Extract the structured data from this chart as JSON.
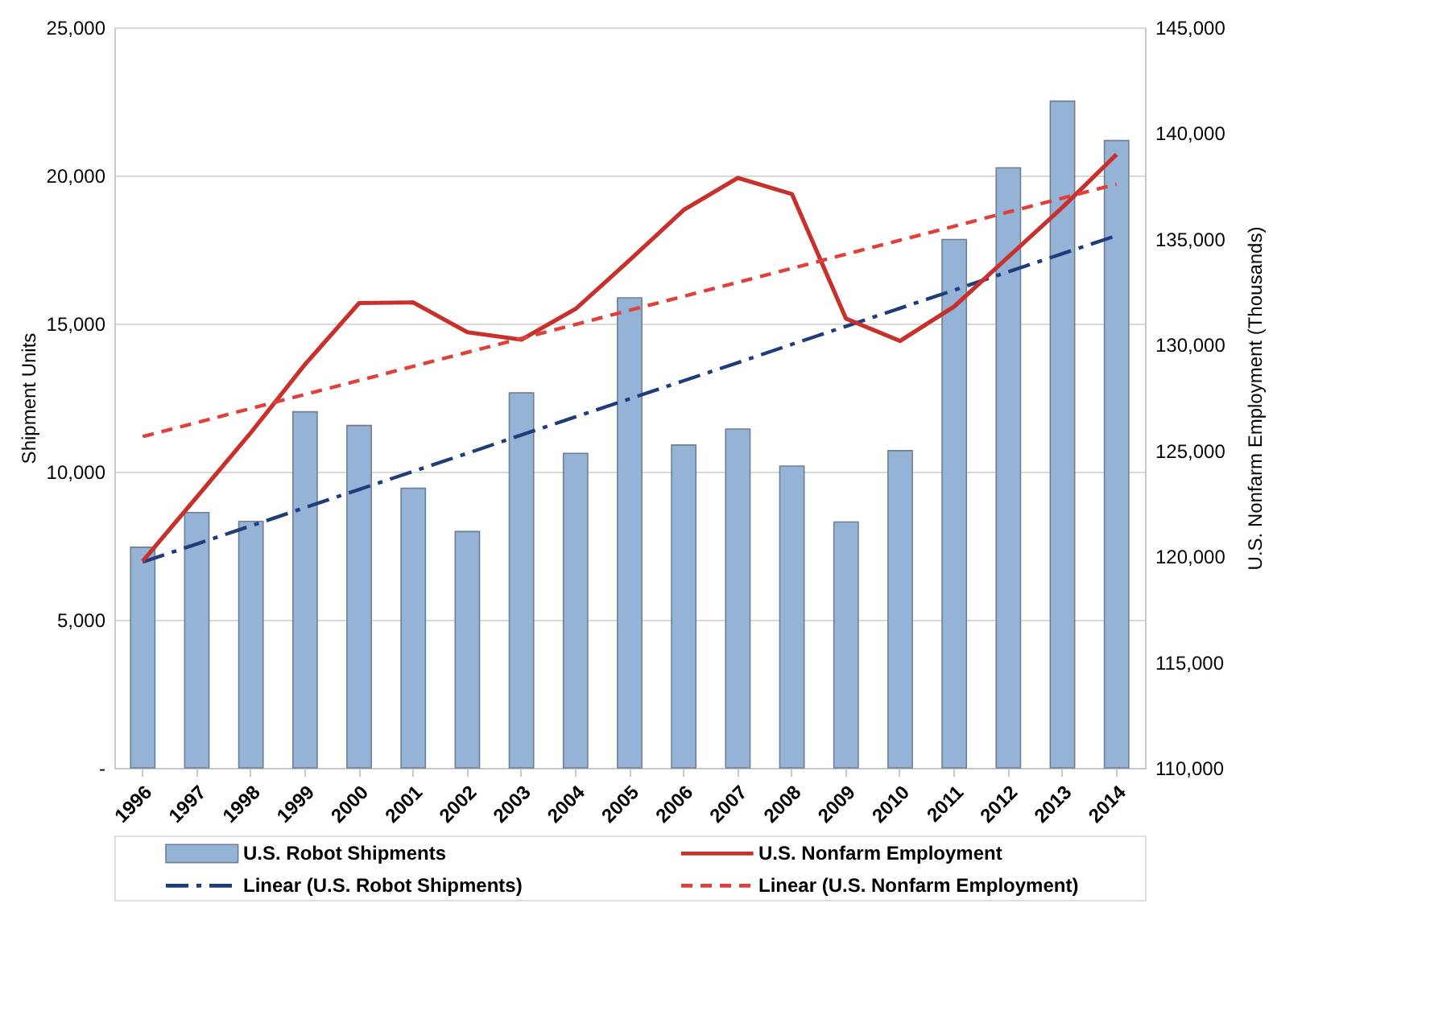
{
  "chart_data": {
    "type": "bar",
    "ylabel": "Shipment Units",
    "y2label": "U.S. Nonfarm Employment (Thousands)",
    "categories": [
      "1996",
      "1997",
      "1998",
      "1999",
      "2000",
      "2001",
      "2002",
      "2003",
      "2004",
      "2005",
      "2006",
      "2007",
      "2008",
      "2009",
      "2010",
      "2011",
      "2012",
      "2013",
      "2014"
    ],
    "series": [
      {
        "name": "U.S. Robot Shipments",
        "color": "#95b3d7",
        "values": [
          7450,
          8620,
          8320,
          12020,
          11560,
          9440,
          7980,
          12660,
          10620,
          15870,
          10900,
          11440,
          10190,
          8300,
          10710,
          17840,
          20260,
          22510,
          21180
        ]
      },
      {
        "name": "U.S. Nonfarm Employment",
        "type": "line",
        "axis": "y2",
        "color": "#c8312b",
        "values": [
          119770,
          122800,
          125850,
          129070,
          131970,
          132000,
          130590,
          130240,
          131690,
          134000,
          136370,
          137890,
          137120,
          131230,
          130180,
          131810,
          134150,
          136490,
          138990
        ]
      },
      {
        "name": "Linear (U.S. Robot Shipments)",
        "type": "line",
        "color": "#1f3d7a",
        "line_style": "dashdot",
        "values": [
          6950,
          7560,
          8170,
          8790,
          9400,
          10010,
          10620,
          11240,
          11850,
          12460,
          13070,
          13680,
          14300,
          14910,
          15520,
          16130,
          16750,
          17360,
          17970
        ]
      },
      {
        "name": "Linear (U.S. Nonfarm Employment)",
        "type": "line",
        "axis": "y2",
        "color": "#e0403a",
        "line_style": "dashed",
        "values": [
          125660,
          126320,
          126990,
          127650,
          128310,
          128980,
          129640,
          130300,
          130960,
          131630,
          132290,
          132950,
          133610,
          134280,
          134940,
          135600,
          136270,
          136930,
          137590
        ]
      }
    ],
    "ylim": [
      0,
      25000
    ],
    "yticks": [
      {
        "value": 0,
        "label": "-"
      },
      {
        "value": 5000,
        "label": "5,000"
      },
      {
        "value": 10000,
        "label": "10,000"
      },
      {
        "value": 15000,
        "label": "15,000"
      },
      {
        "value": 20000,
        "label": "20,000"
      },
      {
        "value": 25000,
        "label": "25,000"
      }
    ],
    "y2lim": [
      110000,
      145000
    ],
    "y2ticks": [
      {
        "value": 110000,
        "label": "110,000"
      },
      {
        "value": 115000,
        "label": "115,000"
      },
      {
        "value": 120000,
        "label": "120,000"
      },
      {
        "value": 125000,
        "label": "125,000"
      },
      {
        "value": 130000,
        "label": "130,000"
      },
      {
        "value": 135000,
        "label": "135,000"
      },
      {
        "value": 140000,
        "label": "140,000"
      },
      {
        "value": 145000,
        "label": "145,000"
      }
    ],
    "grid": "y",
    "legend": "bottom"
  }
}
